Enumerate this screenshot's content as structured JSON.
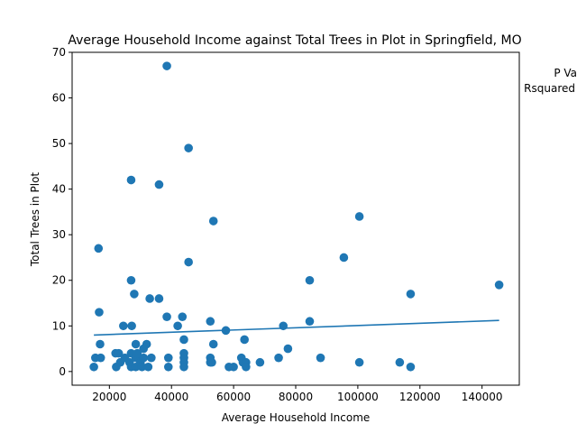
{
  "chart_data": {
    "type": "scatter",
    "title": "Average Household Income against Total Trees in Plot in Springfield, MO",
    "xlabel": "Average Household Income",
    "ylabel": "Total Trees in Plot",
    "xlim": [
      8000,
      152000
    ],
    "ylim": [
      -3,
      70
    ],
    "xticks": [
      20000,
      40000,
      60000,
      80000,
      100000,
      120000,
      140000
    ],
    "yticks": [
      0,
      10,
      20,
      30,
      40,
      50,
      60,
      70
    ],
    "grid": false,
    "legend": "none",
    "annotations": [
      "P Va",
      "Rsquared"
    ],
    "color": "#1f77b4",
    "trendline": {
      "x": [
        15000,
        145500
      ],
      "y": [
        8.0,
        11.2
      ]
    },
    "points": [
      {
        "x": 15000,
        "y": 1
      },
      {
        "x": 15500,
        "y": 3
      },
      {
        "x": 16500,
        "y": 27
      },
      {
        "x": 16700,
        "y": 13
      },
      {
        "x": 17000,
        "y": 6
      },
      {
        "x": 17200,
        "y": 3
      },
      {
        "x": 22000,
        "y": 4
      },
      {
        "x": 22200,
        "y": 1
      },
      {
        "x": 23000,
        "y": 4
      },
      {
        "x": 23500,
        "y": 2
      },
      {
        "x": 24500,
        "y": 10
      },
      {
        "x": 25000,
        "y": 3
      },
      {
        "x": 26500,
        "y": 2
      },
      {
        "x": 27000,
        "y": 42
      },
      {
        "x": 27000,
        "y": 20
      },
      {
        "x": 27200,
        "y": 10
      },
      {
        "x": 27000,
        "y": 4
      },
      {
        "x": 27000,
        "y": 1
      },
      {
        "x": 28000,
        "y": 17
      },
      {
        "x": 28500,
        "y": 6
      },
      {
        "x": 28500,
        "y": 3
      },
      {
        "x": 28500,
        "y": 1
      },
      {
        "x": 29000,
        "y": 4
      },
      {
        "x": 30000,
        "y": 2
      },
      {
        "x": 30500,
        "y": 1
      },
      {
        "x": 31000,
        "y": 5
      },
      {
        "x": 31000,
        "y": 3
      },
      {
        "x": 32000,
        "y": 6
      },
      {
        "x": 32500,
        "y": 1
      },
      {
        "x": 33000,
        "y": 16
      },
      {
        "x": 33500,
        "y": 3
      },
      {
        "x": 36000,
        "y": 41
      },
      {
        "x": 36000,
        "y": 16
      },
      {
        "x": 38500,
        "y": 67
      },
      {
        "x": 38500,
        "y": 12
      },
      {
        "x": 39000,
        "y": 3
      },
      {
        "x": 39000,
        "y": 1
      },
      {
        "x": 42000,
        "y": 10
      },
      {
        "x": 43500,
        "y": 12
      },
      {
        "x": 44000,
        "y": 7
      },
      {
        "x": 44000,
        "y": 4
      },
      {
        "x": 44000,
        "y": 3
      },
      {
        "x": 44000,
        "y": 2
      },
      {
        "x": 44000,
        "y": 1
      },
      {
        "x": 45500,
        "y": 49
      },
      {
        "x": 45500,
        "y": 24
      },
      {
        "x": 52500,
        "y": 11
      },
      {
        "x": 52500,
        "y": 3
      },
      {
        "x": 52500,
        "y": 2
      },
      {
        "x": 53000,
        "y": 2
      },
      {
        "x": 53500,
        "y": 33
      },
      {
        "x": 53500,
        "y": 6
      },
      {
        "x": 57500,
        "y": 9
      },
      {
        "x": 58500,
        "y": 1
      },
      {
        "x": 60000,
        "y": 1
      },
      {
        "x": 62500,
        "y": 3
      },
      {
        "x": 63000,
        "y": 2
      },
      {
        "x": 63500,
        "y": 7
      },
      {
        "x": 64000,
        "y": 2
      },
      {
        "x": 64000,
        "y": 1
      },
      {
        "x": 68500,
        "y": 2
      },
      {
        "x": 74500,
        "y": 3
      },
      {
        "x": 76000,
        "y": 10
      },
      {
        "x": 77500,
        "y": 5
      },
      {
        "x": 84500,
        "y": 20
      },
      {
        "x": 84500,
        "y": 11
      },
      {
        "x": 88000,
        "y": 3
      },
      {
        "x": 95500,
        "y": 25
      },
      {
        "x": 100500,
        "y": 34
      },
      {
        "x": 100500,
        "y": 2
      },
      {
        "x": 113500,
        "y": 2
      },
      {
        "x": 117000,
        "y": 17
      },
      {
        "x": 117000,
        "y": 1
      },
      {
        "x": 145500,
        "y": 19
      }
    ]
  }
}
